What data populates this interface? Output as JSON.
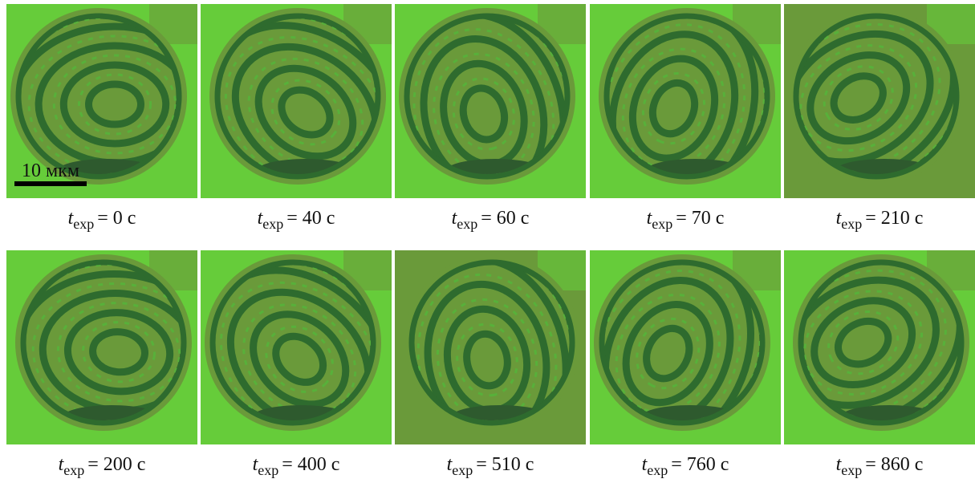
{
  "figure": {
    "scale_bar": "10 мкм",
    "label_var": "t",
    "label_sub": "exp",
    "panels": [
      {
        "label": "= 0 с"
      },
      {
        "label": "= 40 с"
      },
      {
        "label": "= 60 с"
      },
      {
        "label": "= 70 с"
      },
      {
        "label": "= 210 с"
      },
      {
        "label": "= 200 с"
      },
      {
        "label": "= 400 с"
      },
      {
        "label": "= 510 с"
      },
      {
        "label": "= 760 с"
      },
      {
        "label": "= 860 с"
      }
    ]
  }
}
